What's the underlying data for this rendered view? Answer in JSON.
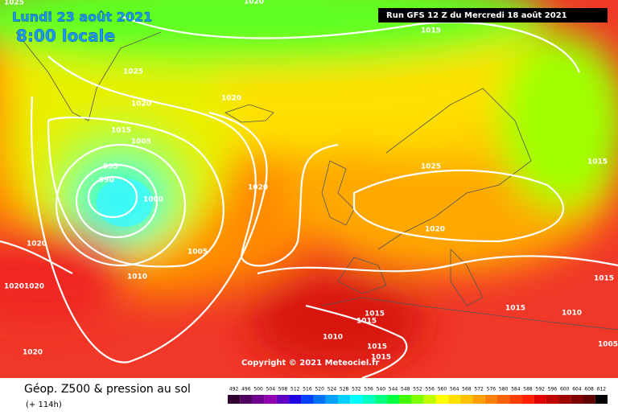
{
  "header": {
    "date": "Lundi 23 août 2021",
    "time": "8:00 locale",
    "run": "Run GFS 12 Z du Mercredi 18 août 2021"
  },
  "isobar_labels": [
    1025,
    1020,
    1015,
    1025,
    1020,
    1020,
    1015,
    1005,
    995,
    990,
    1000,
    1020,
    1025,
    1015,
    1020,
    1020,
    1005,
    1020,
    1020,
    1010,
    1015,
    1015,
    1010,
    1015,
    1015,
    1010,
    1015,
    1015,
    1020,
    1005
  ],
  "copyright": "Copyright © 2021 Meteociel.fr",
  "footer": {
    "title": "Géop. Z500 & pression au sol",
    "lead": "(+ 114h)"
  },
  "scale": {
    "labels": [
      492,
      496,
      500,
      504,
      508,
      512,
      516,
      520,
      524,
      528,
      532,
      536,
      540,
      544,
      548,
      552,
      556,
      560,
      564,
      568,
      572,
      576,
      580,
      584,
      588,
      592,
      596,
      600,
      604,
      608,
      612
    ],
    "colors": [
      "#300030",
      "#500060",
      "#700090",
      "#9000b0",
      "#6000c0",
      "#2000e0",
      "#0040ff",
      "#0070ff",
      "#00a0ff",
      "#00d0ff",
      "#00ffff",
      "#00ffc0",
      "#00ff80",
      "#00ff40",
      "#40ff00",
      "#80ff00",
      "#c0ff00",
      "#ffff00",
      "#ffe000",
      "#ffc000",
      "#ffa000",
      "#ff8000",
      "#ff6000",
      "#ff4000",
      "#ff2000",
      "#e00000",
      "#c00000",
      "#a00000",
      "#800000",
      "#600000",
      "#000000"
    ]
  }
}
